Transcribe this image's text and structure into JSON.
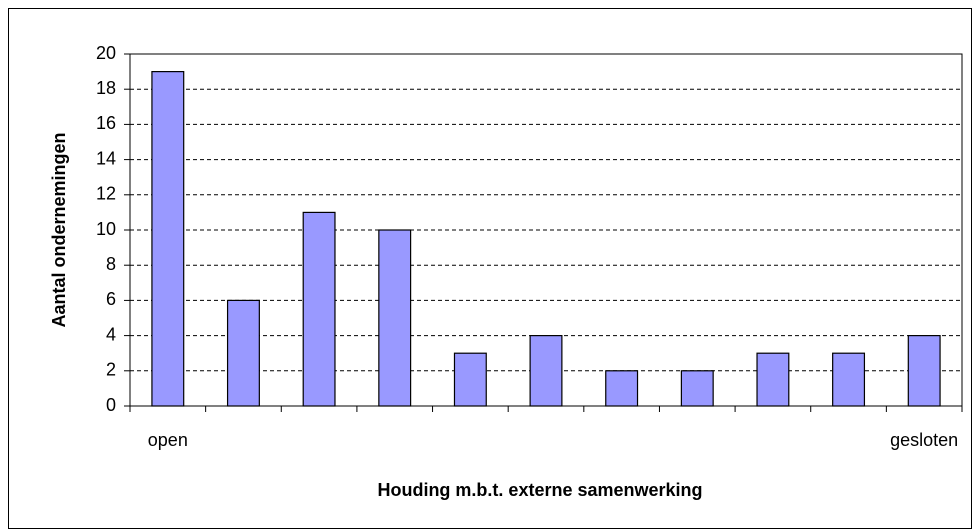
{
  "chart_data": {
    "type": "bar",
    "x_label": "Houding m.b.t. externe samenwerking",
    "y_label": "Aantal ondernemingen",
    "categories": [
      "open",
      null,
      null,
      null,
      null,
      null,
      null,
      null,
      null,
      null,
      "gesloten"
    ],
    "values": [
      19,
      6,
      11,
      10,
      3,
      4,
      2,
      2,
      3,
      3,
      4
    ],
    "color": "#9999ff",
    "ylim": [
      0,
      20
    ],
    "yticks": [
      0,
      2,
      4,
      6,
      8,
      10,
      12,
      14,
      16,
      18,
      20
    ],
    "grid": true
  }
}
